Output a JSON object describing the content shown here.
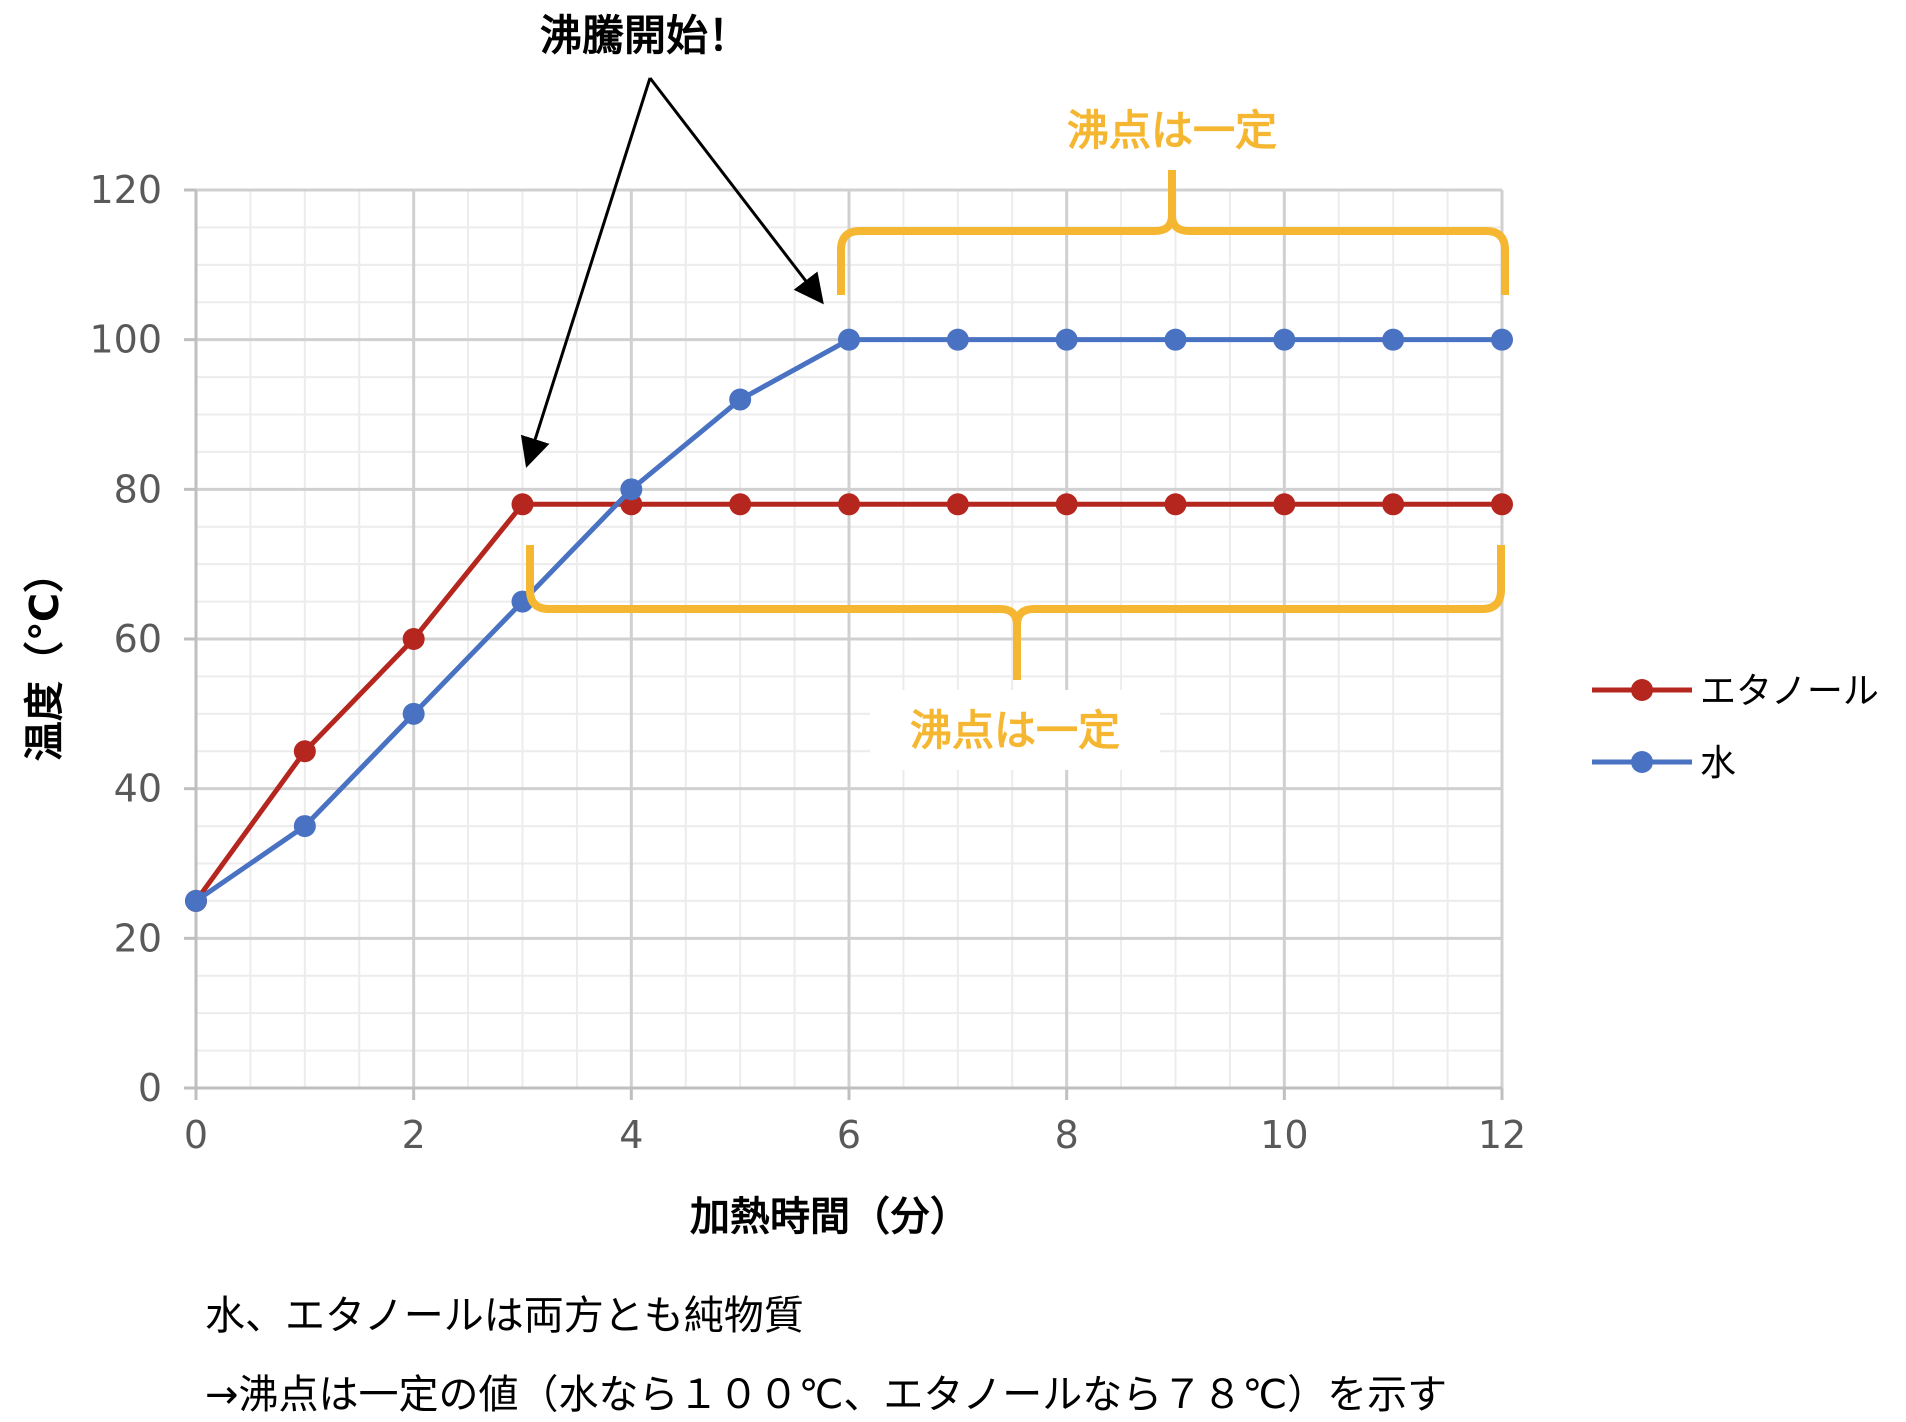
{
  "chart_data": {
    "type": "line",
    "x": [
      0,
      1,
      2,
      3,
      4,
      5,
      6,
      7,
      8,
      9,
      10,
      11,
      12
    ],
    "series": [
      {
        "name": "エタノール",
        "color": "#b5261e",
        "values": [
          25,
          45,
          60,
          78,
          78,
          78,
          78,
          78,
          78,
          78,
          78,
          78,
          78
        ]
      },
      {
        "name": "水",
        "color": "#4a72c2",
        "values": [
          25,
          35,
          50,
          65,
          80,
          92,
          100,
          100,
          100,
          100,
          100,
          100,
          100
        ]
      }
    ],
    "xlabel": "加熱時間（分）",
    "ylabel": "温度（℃）",
    "xlim": [
      0,
      12
    ],
    "ylim": [
      0,
      120
    ],
    "x_ticks": [
      "0",
      "2",
      "4",
      "6",
      "8",
      "10",
      "12"
    ],
    "y_ticks": [
      "0",
      "20",
      "40",
      "60",
      "80",
      "100",
      "120"
    ],
    "grid": true,
    "legend": "right",
    "annotations": {
      "boiling_start": "沸騰開始！",
      "water_plateau": "沸点は一定",
      "ethanol_plateau": "沸点は一定",
      "bracket_color": "#f5b731"
    }
  },
  "caption": {
    "line1": "水、エタノールは両方とも純物質",
    "line2": "→沸点は一定の値（水なら１００℃、エタノールなら７８℃）を示す"
  }
}
